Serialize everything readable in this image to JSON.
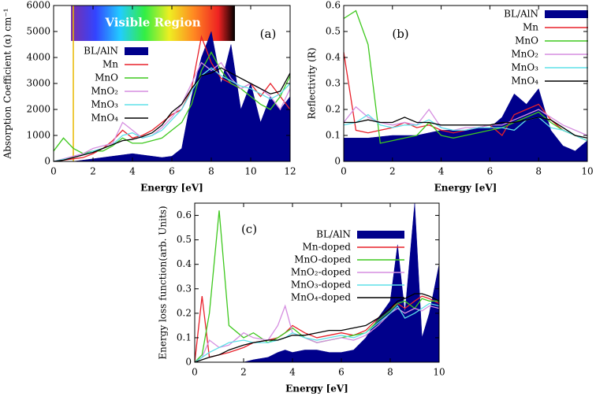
{
  "chart_data": [
    {
      "type": "line",
      "annotation": "(a)",
      "banner": "Visible Region",
      "xlabel": "Energy [eV]",
      "ylabel": "Absorption Coefficient (α) cm⁻¹",
      "xlim": [
        0,
        12
      ],
      "ylim": [
        0,
        6000
      ],
      "xticks": [
        0,
        2,
        4,
        6,
        8,
        10,
        12
      ],
      "yticks": [
        0,
        1000,
        2000,
        3000,
        4000,
        5000,
        6000
      ],
      "x": [
        0,
        0.5,
        1,
        1.5,
        2,
        2.5,
        3,
        3.5,
        4,
        4.5,
        5,
        5.5,
        6,
        6.5,
        7,
        7.5,
        8,
        8.5,
        9,
        9.5,
        10,
        10.5,
        11,
        11.5,
        12
      ],
      "series": [
        {
          "name": "BL/AlN",
          "color": "#00008b",
          "area": true,
          "values": [
            0,
            0,
            0,
            50,
            100,
            150,
            200,
            250,
            300,
            250,
            200,
            150,
            200,
            500,
            2500,
            4000,
            5000,
            3000,
            4500,
            2000,
            3000,
            1500,
            2500,
            2000,
            2500
          ]
        },
        {
          "name": "Mn",
          "color": "#e8202a",
          "values": [
            0,
            50,
            100,
            150,
            300,
            500,
            800,
            1200,
            900,
            1000,
            1200,
            1500,
            1800,
            2000,
            2800,
            4800,
            3800,
            3200,
            3000,
            2800,
            3000,
            2500,
            3000,
            2500,
            2000
          ]
        },
        {
          "name": "MnO",
          "color": "#3ec81e",
          "values": [
            400,
            900,
            500,
            300,
            400,
            400,
            600,
            900,
            700,
            700,
            800,
            900,
            1200,
            1500,
            2200,
            3500,
            4200,
            3500,
            3000,
            2800,
            2500,
            2200,
            2000,
            2500,
            3300
          ]
        },
        {
          "name": "MnO₂",
          "color": "#d58ee0",
          "values": [
            0,
            100,
            200,
            300,
            500,
            600,
            700,
            1500,
            1200,
            900,
            1000,
            1300,
            1700,
            2200,
            3000,
            3800,
            3500,
            3800,
            3200,
            2800,
            3000,
            2800,
            2500,
            2000,
            2800
          ]
        },
        {
          "name": "MnO₃",
          "color": "#5ee0e8",
          "values": [
            0,
            80,
            150,
            250,
            400,
            500,
            650,
            1000,
            1100,
            900,
            1000,
            1200,
            1600,
            2000,
            2700,
            3300,
            3600,
            3300,
            3100,
            2900,
            2800,
            2600,
            2400,
            2600,
            3000
          ]
        },
        {
          "name": "MnO₄",
          "color": "#000000",
          "values": [
            0,
            50,
            150,
            250,
            350,
            500,
            650,
            800,
            850,
            950,
            1100,
            1400,
            1900,
            2200,
            2800,
            3300,
            3400,
            3600,
            3400,
            3200,
            3000,
            2800,
            2600,
            2700,
            3400
          ]
        }
      ]
    },
    {
      "type": "line",
      "annotation": "(b)",
      "xlabel": "Energy [eV]",
      "ylabel": "Reflectivity (R)",
      "xlim": [
        0,
        10
      ],
      "ylim": [
        0,
        0.6
      ],
      "xticks": [
        0,
        2,
        4,
        6,
        8,
        10
      ],
      "yticks": [
        0,
        0.1,
        0.2,
        0.3,
        0.4,
        0.5,
        0.6
      ],
      "x": [
        0,
        0.5,
        1,
        1.5,
        2,
        2.5,
        3,
        3.5,
        4,
        4.5,
        5,
        5.5,
        6,
        6.5,
        7,
        7.5,
        8,
        8.5,
        9,
        9.5,
        10
      ],
      "series": [
        {
          "name": "BL/AlN",
          "color": "#00008b",
          "area": true,
          "values": [
            0.09,
            0.09,
            0.09,
            0.095,
            0.1,
            0.1,
            0.1,
            0.11,
            0.12,
            0.12,
            0.12,
            0.13,
            0.13,
            0.17,
            0.26,
            0.22,
            0.28,
            0.12,
            0.06,
            0.04,
            0.08
          ]
        },
        {
          "name": "Mn",
          "color": "#e8202a",
          "values": [
            0.42,
            0.12,
            0.11,
            0.12,
            0.13,
            0.15,
            0.13,
            0.14,
            0.12,
            0.11,
            0.12,
            0.13,
            0.14,
            0.1,
            0.18,
            0.2,
            0.22,
            0.16,
            0.12,
            0.1,
            0.08
          ]
        },
        {
          "name": "MnO",
          "color": "#3ec81e",
          "values": [
            0.55,
            0.58,
            0.45,
            0.07,
            0.08,
            0.09,
            0.1,
            0.15,
            0.1,
            0.09,
            0.1,
            0.11,
            0.12,
            0.13,
            0.15,
            0.17,
            0.19,
            0.15,
            0.12,
            0.1,
            0.08
          ]
        },
        {
          "name": "MnO₂",
          "color": "#d58ee0",
          "values": [
            0.15,
            0.21,
            0.17,
            0.15,
            0.14,
            0.15,
            0.14,
            0.2,
            0.13,
            0.12,
            0.13,
            0.13,
            0.14,
            0.14,
            0.16,
            0.18,
            0.2,
            0.17,
            0.14,
            0.12,
            0.1
          ]
        },
        {
          "name": "MnO₃",
          "color": "#5ee0e8",
          "values": [
            0.14,
            0.15,
            0.18,
            0.14,
            0.13,
            0.14,
            0.14,
            0.16,
            0.13,
            0.12,
            0.12,
            0.13,
            0.13,
            0.13,
            0.12,
            0.16,
            0.17,
            0.13,
            0.12,
            0.1,
            0.08
          ]
        },
        {
          "name": "MnO₄",
          "color": "#000000",
          "values": [
            0.15,
            0.15,
            0.16,
            0.15,
            0.15,
            0.17,
            0.15,
            0.15,
            0.14,
            0.14,
            0.14,
            0.14,
            0.14,
            0.15,
            0.15,
            0.16,
            0.17,
            0.16,
            0.13,
            0.1,
            0.09
          ]
        }
      ]
    },
    {
      "type": "line",
      "annotation": "(c)",
      "xlabel": "Energy [eV]",
      "ylabel": "Energy loss function(arb. Units)",
      "xlim": [
        0,
        10
      ],
      "ylim": [
        0,
        0.65
      ],
      "xticks": [
        0,
        2,
        4,
        6,
        8,
        10
      ],
      "yticks": [
        0,
        0.1,
        0.2,
        0.3,
        0.4,
        0.5,
        0.6
      ],
      "x": [
        0,
        0.3,
        0.6,
        1,
        1.4,
        2,
        2.4,
        3,
        3.4,
        3.7,
        4,
        4.5,
        5,
        5.5,
        6,
        6.5,
        7,
        7.5,
        8,
        8.3,
        8.6,
        9,
        9.3,
        9.6,
        10
      ],
      "series": [
        {
          "name": "BL/AlN",
          "color": "#00008b",
          "area": true,
          "values": [
            0,
            0,
            0,
            0,
            0,
            0,
            0.01,
            0.02,
            0.04,
            0.05,
            0.04,
            0.05,
            0.05,
            0.04,
            0.04,
            0.05,
            0.1,
            0.18,
            0.25,
            0.48,
            0.2,
            0.65,
            0.1,
            0.2,
            0.4
          ]
        },
        {
          "name": "Mn-doped",
          "color": "#e8202a",
          "values": [
            0,
            0.27,
            0.02,
            0.03,
            0.04,
            0.06,
            0.08,
            0.09,
            0.1,
            0.12,
            0.15,
            0.12,
            0.1,
            0.11,
            0.12,
            0.11,
            0.13,
            0.18,
            0.22,
            0.24,
            0.22,
            0.25,
            0.27,
            0.26,
            0.24
          ]
        },
        {
          "name": "MnO-doped",
          "color": "#3ec81e",
          "values": [
            0,
            0.03,
            0.2,
            0.62,
            0.15,
            0.1,
            0.12,
            0.08,
            0.1,
            0.12,
            0.14,
            0.1,
            0.08,
            0.09,
            0.1,
            0.11,
            0.12,
            0.17,
            0.21,
            0.24,
            0.25,
            0.22,
            0.26,
            0.25,
            0.25
          ]
        },
        {
          "name": "MnO₂-doped",
          "color": "#d58ee0",
          "values": [
            0,
            0.02,
            0.09,
            0.06,
            0.07,
            0.12,
            0.1,
            0.09,
            0.15,
            0.23,
            0.12,
            0.1,
            0.08,
            0.09,
            0.1,
            0.09,
            0.11,
            0.15,
            0.2,
            0.22,
            0.2,
            0.22,
            0.21,
            0.23,
            0.22
          ]
        },
        {
          "name": "MnO₃-doped",
          "color": "#5ee0e8",
          "values": [
            0,
            0.02,
            0.04,
            0.06,
            0.08,
            0.09,
            0.08,
            0.08,
            0.09,
            0.1,
            0.12,
            0.1,
            0.09,
            0.1,
            0.11,
            0.1,
            0.12,
            0.16,
            0.2,
            0.23,
            0.18,
            0.2,
            0.22,
            0.24,
            0.23
          ]
        },
        {
          "name": "MnO₄-doped",
          "color": "#000000",
          "values": [
            0,
            0.01,
            0.02,
            0.03,
            0.05,
            0.07,
            0.08,
            0.09,
            0.09,
            0.1,
            0.11,
            0.11,
            0.12,
            0.13,
            0.13,
            0.14,
            0.15,
            0.18,
            0.22,
            0.25,
            0.26,
            0.28,
            0.28,
            0.27,
            0.25
          ]
        }
      ]
    }
  ]
}
